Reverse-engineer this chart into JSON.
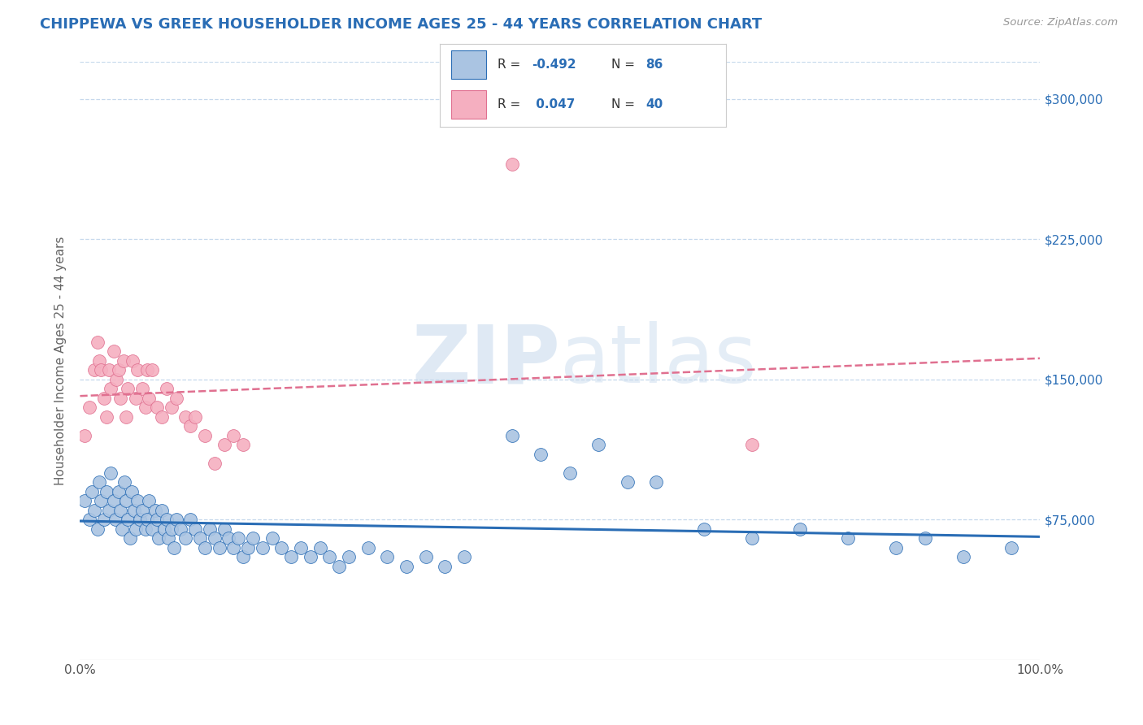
{
  "title": "CHIPPEWA VS GREEK HOUSEHOLDER INCOME AGES 25 - 44 YEARS CORRELATION CHART",
  "source_text": "Source: ZipAtlas.com",
  "ylabel": "Householder Income Ages 25 - 44 years",
  "xlim": [
    0,
    1.0
  ],
  "ylim": [
    0,
    320000
  ],
  "yticks": [
    0,
    75000,
    150000,
    225000,
    300000
  ],
  "xtick_labels": [
    "0.0%",
    "",
    "",
    "",
    "",
    "",
    "",
    "",
    "",
    "",
    "100.0%"
  ],
  "xticks": [
    0.0,
    0.1,
    0.2,
    0.3,
    0.4,
    0.5,
    0.6,
    0.7,
    0.8,
    0.9,
    1.0
  ],
  "chippewa_color": "#aac4e2",
  "greek_color": "#f5afc0",
  "chippewa_line_color": "#2a6db5",
  "greek_line_color": "#e07090",
  "background_color": "#ffffff",
  "grid_color": "#c5d8ec",
  "title_color": "#2a6db5",
  "source_color": "#999999",
  "watermark_zip_color": "#c5d8ec",
  "watermark_atlas_color": "#c5d8ec",
  "chippewa_scatter_x": [
    0.005,
    0.01,
    0.012,
    0.015,
    0.018,
    0.02,
    0.022,
    0.025,
    0.028,
    0.03,
    0.032,
    0.035,
    0.037,
    0.04,
    0.042,
    0.044,
    0.046,
    0.048,
    0.05,
    0.052,
    0.054,
    0.056,
    0.058,
    0.06,
    0.062,
    0.065,
    0.068,
    0.07,
    0.072,
    0.075,
    0.078,
    0.08,
    0.082,
    0.085,
    0.088,
    0.09,
    0.092,
    0.095,
    0.098,
    0.1,
    0.105,
    0.11,
    0.115,
    0.12,
    0.125,
    0.13,
    0.135,
    0.14,
    0.145,
    0.15,
    0.155,
    0.16,
    0.165,
    0.17,
    0.175,
    0.18,
    0.19,
    0.2,
    0.21,
    0.22,
    0.23,
    0.24,
    0.25,
    0.26,
    0.27,
    0.28,
    0.3,
    0.32,
    0.34,
    0.36,
    0.38,
    0.4,
    0.45,
    0.48,
    0.51,
    0.54,
    0.57,
    0.6,
    0.65,
    0.7,
    0.75,
    0.8,
    0.85,
    0.88,
    0.92,
    0.97
  ],
  "chippewa_scatter_y": [
    85000,
    75000,
    90000,
    80000,
    70000,
    95000,
    85000,
    75000,
    90000,
    80000,
    100000,
    85000,
    75000,
    90000,
    80000,
    70000,
    95000,
    85000,
    75000,
    65000,
    90000,
    80000,
    70000,
    85000,
    75000,
    80000,
    70000,
    75000,
    85000,
    70000,
    80000,
    75000,
    65000,
    80000,
    70000,
    75000,
    65000,
    70000,
    60000,
    75000,
    70000,
    65000,
    75000,
    70000,
    65000,
    60000,
    70000,
    65000,
    60000,
    70000,
    65000,
    60000,
    65000,
    55000,
    60000,
    65000,
    60000,
    65000,
    60000,
    55000,
    60000,
    55000,
    60000,
    55000,
    50000,
    55000,
    60000,
    55000,
    50000,
    55000,
    50000,
    55000,
    120000,
    110000,
    100000,
    115000,
    95000,
    95000,
    70000,
    65000,
    70000,
    65000,
    60000,
    65000,
    55000,
    60000
  ],
  "greek_scatter_x": [
    0.005,
    0.01,
    0.015,
    0.018,
    0.02,
    0.022,
    0.025,
    0.028,
    0.03,
    0.032,
    0.035,
    0.038,
    0.04,
    0.042,
    0.045,
    0.048,
    0.05,
    0.055,
    0.058,
    0.06,
    0.065,
    0.068,
    0.07,
    0.072,
    0.075,
    0.08,
    0.085,
    0.09,
    0.095,
    0.1,
    0.11,
    0.115,
    0.12,
    0.13,
    0.14,
    0.15,
    0.16,
    0.17,
    0.45,
    0.7
  ],
  "greek_scatter_y": [
    120000,
    135000,
    155000,
    170000,
    160000,
    155000,
    140000,
    130000,
    155000,
    145000,
    165000,
    150000,
    155000,
    140000,
    160000,
    130000,
    145000,
    160000,
    140000,
    155000,
    145000,
    135000,
    155000,
    140000,
    155000,
    135000,
    130000,
    145000,
    135000,
    140000,
    130000,
    125000,
    130000,
    120000,
    105000,
    115000,
    120000,
    115000,
    265000,
    115000
  ]
}
